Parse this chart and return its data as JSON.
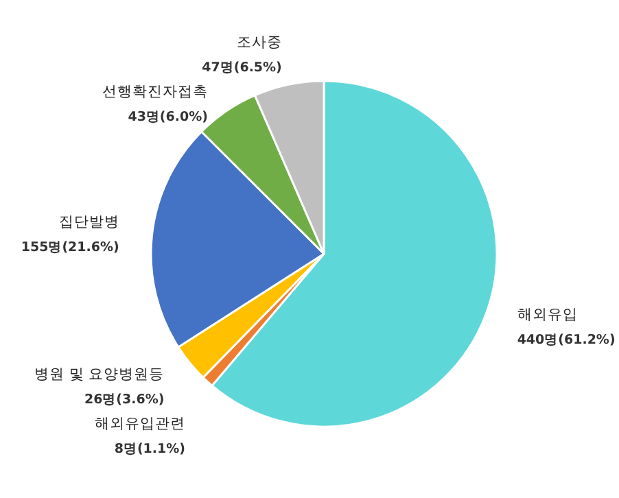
{
  "chart_data": {
    "type": "pie",
    "categories": [
      "해외유입",
      "해외유입관련",
      "병원 및 요양병원등",
      "집단발병",
      "선행확진자접촉",
      "조사중"
    ],
    "values": [
      440,
      8,
      26,
      155,
      43,
      47
    ],
    "value_labels": [
      "440명(61.2%)",
      "8명(1.1%)",
      "26명(3.6%)",
      "155명(21.6%)",
      "43명(6.0%)",
      "47명(6.5%)"
    ],
    "colors": [
      "#5ed7d8",
      "#ed7d31",
      "#ffc000",
      "#4472c4",
      "#70ad47",
      "#bfbfbf"
    ]
  }
}
